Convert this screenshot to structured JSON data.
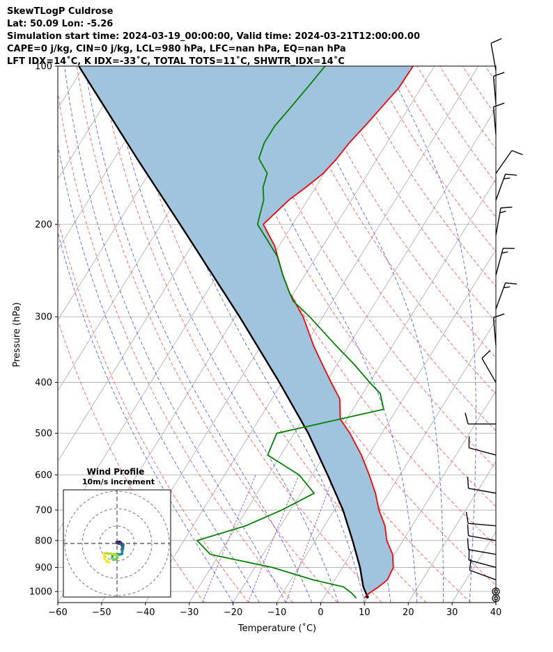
{
  "header": {
    "lines": [
      "SkewTLogP Culdrose",
      "Lat: 50.09   Lon: -5.26",
      "Simulation start time: 2024-03-19_00:00:00, Valid time: 2024-03-21T12:00:00.00",
      "CAPE=0 j/kg, CIN=0 j/kg, LCL=980 hPa, LFC=nan hPa, EQ=nan hPa",
      "LFT IDX=14˚C, K IDX=-33˚C, TOTAL TOTS=11˚C, SHWTR_IDX=14˚C"
    ]
  },
  "chart_data": {
    "type": "line",
    "skew_t": true,
    "xlabel": "Temperature (˚C)",
    "ylabel": "Pressure (hPa)",
    "xlim": [
      -60,
      40
    ],
    "ylim": [
      1050,
      100
    ],
    "y_scale": "log",
    "x_ticks": [
      -60,
      -50,
      -40,
      -30,
      -20,
      -10,
      0,
      10,
      20,
      30,
      40
    ],
    "x_tick_labels": [
      "−60",
      "−50",
      "−40",
      "−30",
      "−20",
      "−10",
      "0",
      "10",
      "20",
      "30",
      "40"
    ],
    "y_ticks": [
      1000,
      900,
      800,
      700,
      600,
      500,
      400,
      300,
      200,
      100
    ],
    "y_tick_labels": [
      "1000",
      "900",
      "800",
      "700",
      "600",
      "500",
      "400",
      "300",
      "200",
      "100"
    ],
    "grid": true,
    "colors": {
      "temperature": "#ff0000",
      "dewpoint": "#008000",
      "parcel": "#000000",
      "shading": "#a1c4de",
      "dry_adiabat": "#ff5555",
      "moist_adiabat": "#3344ee",
      "mixing_ratio": "#9966cc",
      "isotherm": "#aaaaaa",
      "wind_barb": "#000000"
    },
    "series": [
      {
        "key": "temperature",
        "pressure": [
          1030,
          1010,
          980,
          950,
          900,
          850,
          800,
          750,
          700,
          650,
          600,
          550,
          500,
          470,
          430,
          400,
          370,
          340,
          300,
          270,
          250,
          220,
          200,
          180,
          170,
          160,
          150,
          140,
          130,
          120,
          110,
          100
        ],
        "values": [
          9.3,
          9.6,
          11,
          12,
          11.6,
          9.6,
          6.3,
          3.8,
          0.2,
          -3,
          -7,
          -11.6,
          -17.3,
          -21.5,
          -24.5,
          -28.8,
          -33.3,
          -38.1,
          -44.5,
          -51,
          -55,
          -61,
          -66.7,
          -64.3,
          -62.2,
          -60.2,
          -59.2,
          -58.6,
          -57.4,
          -56.3,
          -55.1,
          -54.9
        ]
      },
      {
        "key": "dewpoint",
        "pressure": [
          1030,
          1010,
          980,
          950,
          900,
          850,
          800,
          750,
          700,
          650,
          600,
          550,
          500,
          450,
          420,
          400,
          370,
          340,
          300,
          280,
          270,
          250,
          230,
          200,
          190,
          180,
          170,
          160,
          150,
          140,
          130,
          120,
          110,
          100
        ],
        "values": [
          7.5,
          6,
          3,
          -5,
          -16,
          -32,
          -37,
          -28,
          -22,
          -17,
          -23,
          -33,
          -34,
          -13,
          -16,
          -20,
          -26,
          -33,
          -43,
          -49,
          -51,
          -55,
          -59,
          -68,
          -69,
          -70,
          -72,
          -73,
          -77,
          -78,
          -78,
          -77,
          -76,
          -75
        ]
      },
      {
        "key": "parcel",
        "pressure": [
          1030,
          980,
          900,
          800,
          700,
          600,
          500,
          400,
          300,
          250,
          200,
          150,
          100
        ],
        "values": [
          10.2,
          7.5,
          4.0,
          -1.5,
          -8.0,
          -16.5,
          -26.8,
          -40.6,
          -59.0,
          -71.0,
          -85.7,
          -104.8,
          -131.2
        ]
      }
    ],
    "wind_barbs": [
      {
        "pressure": 1030,
        "speed_kt": 0,
        "dir_deg": 0
      },
      {
        "pressure": 1000,
        "speed_kt": 0,
        "dir_deg": 0
      },
      {
        "pressure": 950,
        "speed_kt": 10,
        "dir_deg": 290
      },
      {
        "pressure": 900,
        "speed_kt": 10,
        "dir_deg": 285
      },
      {
        "pressure": 850,
        "speed_kt": 10,
        "dir_deg": 280
      },
      {
        "pressure": 800,
        "speed_kt": 10,
        "dir_deg": 280
      },
      {
        "pressure": 750,
        "speed_kt": 10,
        "dir_deg": 275
      },
      {
        "pressure": 650,
        "speed_kt": 10,
        "dir_deg": 280
      },
      {
        "pressure": 550,
        "speed_kt": 10,
        "dir_deg": 285
      },
      {
        "pressure": 480,
        "speed_kt": 10,
        "dir_deg": 270
      },
      {
        "pressure": 400,
        "speed_kt": 10,
        "dir_deg": 330
      },
      {
        "pressure": 340,
        "speed_kt": 10,
        "dir_deg": 355
      },
      {
        "pressure": 290,
        "speed_kt": 15,
        "dir_deg": 20
      },
      {
        "pressure": 250,
        "speed_kt": 15,
        "dir_deg": 15
      },
      {
        "pressure": 210,
        "speed_kt": 15,
        "dir_deg": 10
      },
      {
        "pressure": 180,
        "speed_kt": 15,
        "dir_deg": 20
      },
      {
        "pressure": 160,
        "speed_kt": 10,
        "dir_deg": 35
      },
      {
        "pressure": 135,
        "speed_kt": 10,
        "dir_deg": 355
      },
      {
        "pressure": 118,
        "speed_kt": 10,
        "dir_deg": 355
      },
      {
        "pressure": 102,
        "speed_kt": 10,
        "dir_deg": 350
      }
    ],
    "hodograph": {
      "title": "Wind Profile",
      "subtitle": "10m/s increment",
      "ring_step_ms": 10,
      "rings": 3,
      "points": [
        [
          0.6,
          0.6
        ],
        [
          1.2,
          0.5
        ],
        [
          1.6,
          0.9
        ],
        [
          0.4,
          0.9
        ],
        [
          -0.2,
          0.8
        ],
        [
          0.3,
          0.1
        ],
        [
          1.8,
          -0.2
        ],
        [
          2.4,
          0.4
        ],
        [
          2.6,
          -0.6
        ],
        [
          3.1,
          -2.2
        ],
        [
          3.6,
          -0.5
        ],
        [
          3.4,
          -3.2
        ],
        [
          2.6,
          -3.4
        ],
        [
          3.0,
          -4.3
        ],
        [
          2.9,
          -6.0
        ],
        [
          1.6,
          -6.4
        ],
        [
          0.0,
          -6.2
        ],
        [
          -2.5,
          -6.4
        ],
        [
          -2.8,
          -8.6
        ],
        [
          -1.4,
          -9.4
        ],
        [
          0.2,
          -8.2
        ],
        [
          -0.4,
          -6.6
        ],
        [
          -3.4,
          -6.0
        ],
        [
          -6.4,
          -5.6
        ],
        [
          -7.6,
          -6.0
        ],
        [
          -7.2,
          -8.5
        ],
        [
          -5.8,
          -10.4
        ],
        [
          -4.6,
          -10.9
        ]
      ]
    }
  }
}
